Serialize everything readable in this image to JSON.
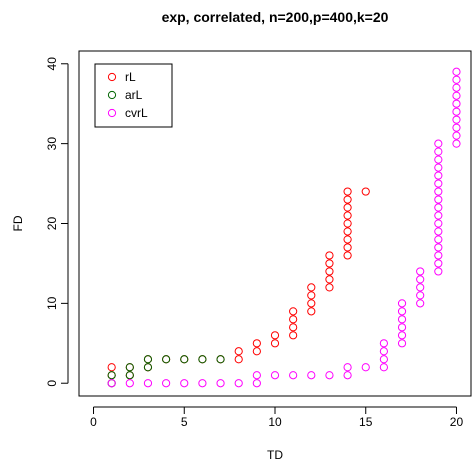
{
  "chart_data": {
    "type": "scatter",
    "title": "exp, correlated, n=200,p=400,k=20",
    "xlabel": "TD",
    "ylabel": "FD",
    "xlim": [
      -0.8,
      20.8
    ],
    "ylim": [
      -1.6,
      41.6
    ],
    "xticks": [
      0,
      5,
      10,
      15,
      20
    ],
    "yticks": [
      0,
      10,
      20,
      30,
      40
    ],
    "grid": false,
    "legend": {
      "placement": "top-left",
      "marker": "open-circle"
    },
    "series": [
      {
        "name": "rL",
        "color": "#ff0000",
        "points": [
          [
            1,
            2
          ],
          [
            1,
            1
          ],
          [
            2,
            2
          ],
          [
            2,
            1
          ],
          [
            3,
            3
          ],
          [
            3,
            2
          ],
          [
            4,
            3
          ],
          [
            5,
            3
          ],
          [
            6,
            3
          ],
          [
            7,
            3
          ],
          [
            8,
            3
          ],
          [
            8,
            4
          ],
          [
            9,
            4
          ],
          [
            9,
            5
          ],
          [
            10,
            5
          ],
          [
            10,
            6
          ],
          [
            11,
            6
          ],
          [
            11,
            7
          ],
          [
            11,
            8
          ],
          [
            11,
            9
          ],
          [
            12,
            9
          ],
          [
            12,
            10
          ],
          [
            12,
            11
          ],
          [
            12,
            12
          ],
          [
            13,
            12
          ],
          [
            13,
            13
          ],
          [
            13,
            14
          ],
          [
            13,
            15
          ],
          [
            13,
            16
          ],
          [
            14,
            16
          ],
          [
            14,
            17
          ],
          [
            14,
            18
          ],
          [
            14,
            19
          ],
          [
            14,
            20
          ],
          [
            14,
            21
          ],
          [
            14,
            22
          ],
          [
            14,
            23
          ],
          [
            14,
            24
          ],
          [
            15,
            24
          ]
        ]
      },
      {
        "name": "arL",
        "color": "#006400",
        "points": [
          [
            1,
            0
          ],
          [
            1,
            1
          ],
          [
            2,
            1
          ],
          [
            2,
            2
          ],
          [
            3,
            2
          ],
          [
            3,
            3
          ],
          [
            4,
            3
          ],
          [
            5,
            3
          ],
          [
            6,
            3
          ],
          [
            7,
            3
          ]
        ]
      },
      {
        "name": "cvrL",
        "color": "#ff00ff",
        "points": [
          [
            1,
            0
          ],
          [
            2,
            0
          ],
          [
            3,
            0
          ],
          [
            4,
            0
          ],
          [
            5,
            0
          ],
          [
            6,
            0
          ],
          [
            7,
            0
          ],
          [
            8,
            0
          ],
          [
            9,
            0
          ],
          [
            9,
            1
          ],
          [
            10,
            1
          ],
          [
            11,
            1
          ],
          [
            12,
            1
          ],
          [
            13,
            1
          ],
          [
            14,
            1
          ],
          [
            14,
            2
          ],
          [
            15,
            2
          ],
          [
            16,
            2
          ],
          [
            16,
            3
          ],
          [
            16,
            4
          ],
          [
            16,
            5
          ],
          [
            17,
            5
          ],
          [
            17,
            6
          ],
          [
            17,
            7
          ],
          [
            17,
            8
          ],
          [
            17,
            9
          ],
          [
            17,
            10
          ],
          [
            18,
            10
          ],
          [
            18,
            11
          ],
          [
            18,
            12
          ],
          [
            18,
            13
          ],
          [
            18,
            14
          ],
          [
            19,
            14
          ],
          [
            19,
            15
          ],
          [
            19,
            16
          ],
          [
            19,
            17
          ],
          [
            19,
            18
          ],
          [
            19,
            19
          ],
          [
            19,
            20
          ],
          [
            19,
            21
          ],
          [
            19,
            22
          ],
          [
            19,
            23
          ],
          [
            19,
            24
          ],
          [
            19,
            25
          ],
          [
            19,
            26
          ],
          [
            19,
            27
          ],
          [
            19,
            28
          ],
          [
            19,
            29
          ],
          [
            19,
            30
          ],
          [
            20,
            30
          ],
          [
            20,
            31
          ],
          [
            20,
            32
          ],
          [
            20,
            33
          ],
          [
            20,
            34
          ],
          [
            20,
            35
          ],
          [
            20,
            36
          ],
          [
            20,
            37
          ],
          [
            20,
            38
          ],
          [
            20,
            39
          ]
        ]
      }
    ]
  }
}
